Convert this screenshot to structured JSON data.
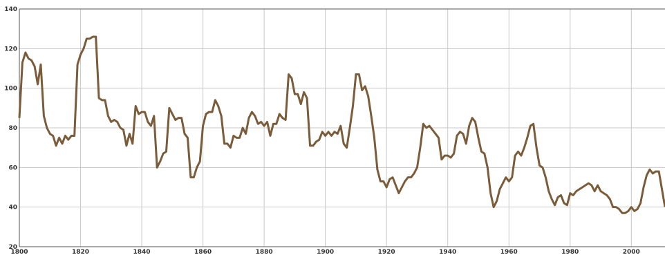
{
  "chart_data": {
    "type": "line",
    "x": [
      1800,
      1801,
      1802,
      1803,
      1804,
      1805,
      1806,
      1807,
      1808,
      1809,
      1810,
      1811,
      1812,
      1813,
      1814,
      1815,
      1816,
      1817,
      1818,
      1819,
      1820,
      1821,
      1822,
      1823,
      1824,
      1825,
      1826,
      1827,
      1828,
      1829,
      1830,
      1831,
      1832,
      1833,
      1834,
      1835,
      1836,
      1837,
      1838,
      1839,
      1840,
      1841,
      1842,
      1843,
      1844,
      1845,
      1846,
      1847,
      1848,
      1849,
      1850,
      1851,
      1852,
      1853,
      1854,
      1855,
      1856,
      1857,
      1858,
      1859,
      1860,
      1861,
      1862,
      1863,
      1864,
      1865,
      1866,
      1867,
      1868,
      1869,
      1870,
      1871,
      1872,
      1873,
      1874,
      1875,
      1876,
      1877,
      1878,
      1879,
      1880,
      1881,
      1882,
      1883,
      1884,
      1885,
      1886,
      1887,
      1888,
      1889,
      1890,
      1891,
      1892,
      1893,
      1894,
      1895,
      1896,
      1897,
      1898,
      1899,
      1900,
      1901,
      1902,
      1903,
      1904,
      1905,
      1906,
      1907,
      1908,
      1909,
      1910,
      1911,
      1912,
      1913,
      1914,
      1915,
      1916,
      1917,
      1918,
      1919,
      1920,
      1921,
      1922,
      1923,
      1924,
      1925,
      1926,
      1927,
      1928,
      1929,
      1930,
      1931,
      1932,
      1933,
      1934,
      1935,
      1936,
      1937,
      1938,
      1939,
      1940,
      1941,
      1942,
      1943,
      1944,
      1945,
      1946,
      1947,
      1948,
      1949,
      1950,
      1951,
      1952,
      1953,
      1954,
      1955,
      1956,
      1957,
      1958,
      1959,
      1960,
      1961,
      1962,
      1963,
      1964,
      1965,
      1966,
      1967,
      1968,
      1969,
      1970,
      1971,
      1972,
      1973,
      1974,
      1975,
      1976,
      1977,
      1978,
      1979,
      1980,
      1981,
      1982,
      1983,
      1984,
      1985,
      1986,
      1987,
      1988,
      1989,
      1990,
      1991,
      1992,
      1993,
      1994,
      1995,
      1996,
      1997,
      1998,
      1999,
      2000,
      2001,
      2002,
      2003,
      2004,
      2005,
      2006,
      2007,
      2008,
      2009,
      2010,
      2011
    ],
    "series": [
      {
        "color": "#7a5c3a",
        "values": [
          85,
          113,
          118,
          115,
          114,
          111,
          102,
          112,
          86,
          80,
          77,
          76,
          71,
          75,
          72,
          76,
          74,
          76,
          76,
          112,
          117,
          120,
          125,
          125,
          126,
          126,
          95,
          94,
          94,
          86,
          83,
          84,
          83,
          80,
          79,
          71,
          77,
          72,
          91,
          87,
          88,
          88,
          83,
          81,
          86,
          60,
          63,
          67,
          68,
          90,
          87,
          84,
          85,
          85,
          77,
          75,
          55,
          55,
          60,
          63,
          81,
          87,
          88,
          88,
          94,
          91,
          86,
          72,
          72,
          70,
          76,
          75,
          75,
          80,
          77,
          85,
          88,
          86,
          82,
          83,
          81,
          83,
          76,
          82,
          82,
          87,
          85,
          84,
          107,
          105,
          97,
          97,
          92,
          98,
          95,
          71,
          71,
          73,
          74,
          78,
          76,
          78,
          76,
          78,
          77,
          81,
          72,
          70,
          80,
          91,
          107,
          107,
          99,
          101,
          96,
          86,
          75,
          59,
          53,
          53,
          50,
          54,
          55,
          51,
          47,
          50,
          53,
          55,
          55,
          57,
          60,
          70,
          82,
          80,
          81,
          79,
          77,
          75,
          64,
          66,
          66,
          65,
          67,
          76,
          78,
          77,
          72,
          81,
          85,
          83,
          75,
          68,
          67,
          60,
          47,
          40,
          43,
          49,
          52,
          55,
          53,
          55,
          66,
          68,
          66,
          70,
          75,
          81,
          82,
          70,
          61,
          60,
          55,
          48,
          44,
          41,
          45,
          46,
          42,
          41,
          47,
          46,
          48,
          49,
          50,
          51,
          52,
          51,
          48,
          51,
          48,
          47,
          46,
          44,
          40,
          40,
          39,
          37,
          37,
          38,
          40,
          38,
          39,
          42,
          50,
          56,
          59,
          57,
          58,
          58,
          49,
          40
        ]
      }
    ],
    "xlim": [
      1800,
      2011
    ],
    "ylim": [
      20,
      140
    ],
    "xticks": [
      1800,
      1820,
      1840,
      1860,
      1880,
      1900,
      1920,
      1940,
      1960,
      1980,
      2000
    ],
    "yticks": [
      20,
      40,
      60,
      80,
      100,
      120,
      140
    ],
    "grid": true
  }
}
